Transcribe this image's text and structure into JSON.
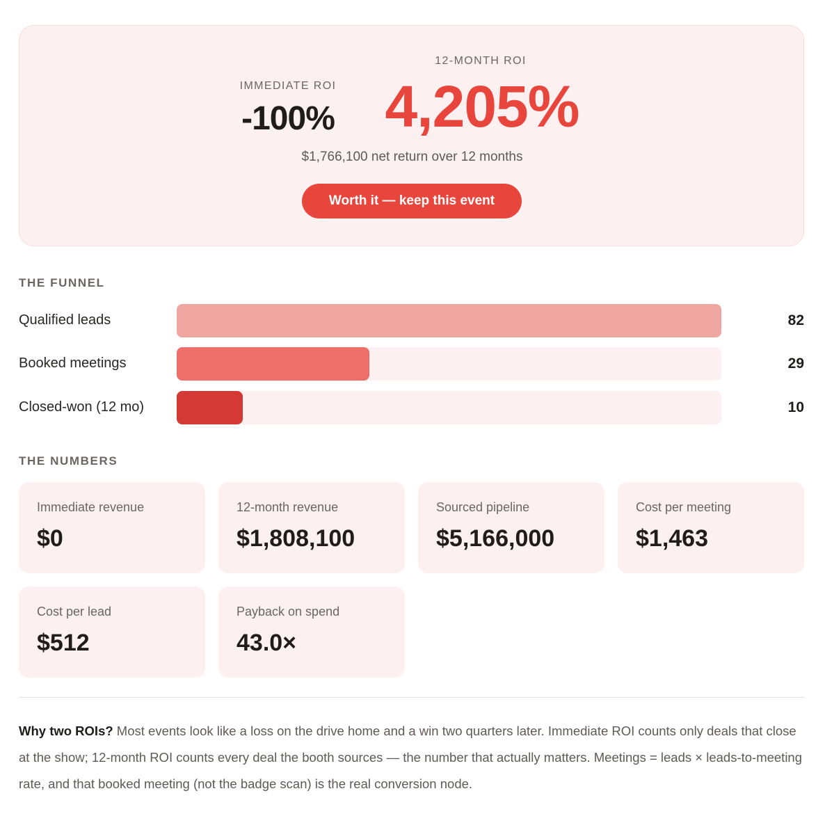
{
  "hero": {
    "immediate_label": "IMMEDIATE ROI",
    "immediate_value": "-100%",
    "twelve_month_label": "12-MONTH ROI",
    "twelve_month_value": "4,205%",
    "net_return": "$1,766,100 net return over 12 months",
    "verdict_button": "Worth it — keep this event"
  },
  "funnel": {
    "title": "THE FUNNEL",
    "max": 82,
    "rows": [
      {
        "label": "Qualified leads",
        "value": 82,
        "value_text": "82",
        "color": "#f0a7a2"
      },
      {
        "label": "Booked meetings",
        "value": 29,
        "value_text": "29",
        "color": "#ee6f69"
      },
      {
        "label": "Closed-won (12 mo)",
        "value": 10,
        "value_text": "10",
        "color": "#d43a35"
      }
    ]
  },
  "numbers": {
    "title": "THE NUMBERS",
    "cards": [
      {
        "label": "Immediate revenue",
        "value": "$0"
      },
      {
        "label": "12-month revenue",
        "value": "$1,808,100"
      },
      {
        "label": "Sourced pipeline",
        "value": "$5,166,000"
      },
      {
        "label": "Cost per meeting",
        "value": "$1,463"
      },
      {
        "label": "Cost per lead",
        "value": "$512"
      },
      {
        "label": "Payback on spend",
        "value": "43.0×"
      }
    ]
  },
  "note": {
    "heading": "Why two ROIs?",
    "body": " Most events look like a loss on the drive home and a win two quarters later. Immediate ROI counts only deals that close at the show; 12-month ROI counts every deal the booth sources — the number that actually matters. Meetings = leads × leads-to-meeting rate, and that booked meeting (not the badge scan) is the real conversion node."
  },
  "colors": {
    "accent": "#e8453c",
    "card_bg": "#fdf0f0"
  }
}
